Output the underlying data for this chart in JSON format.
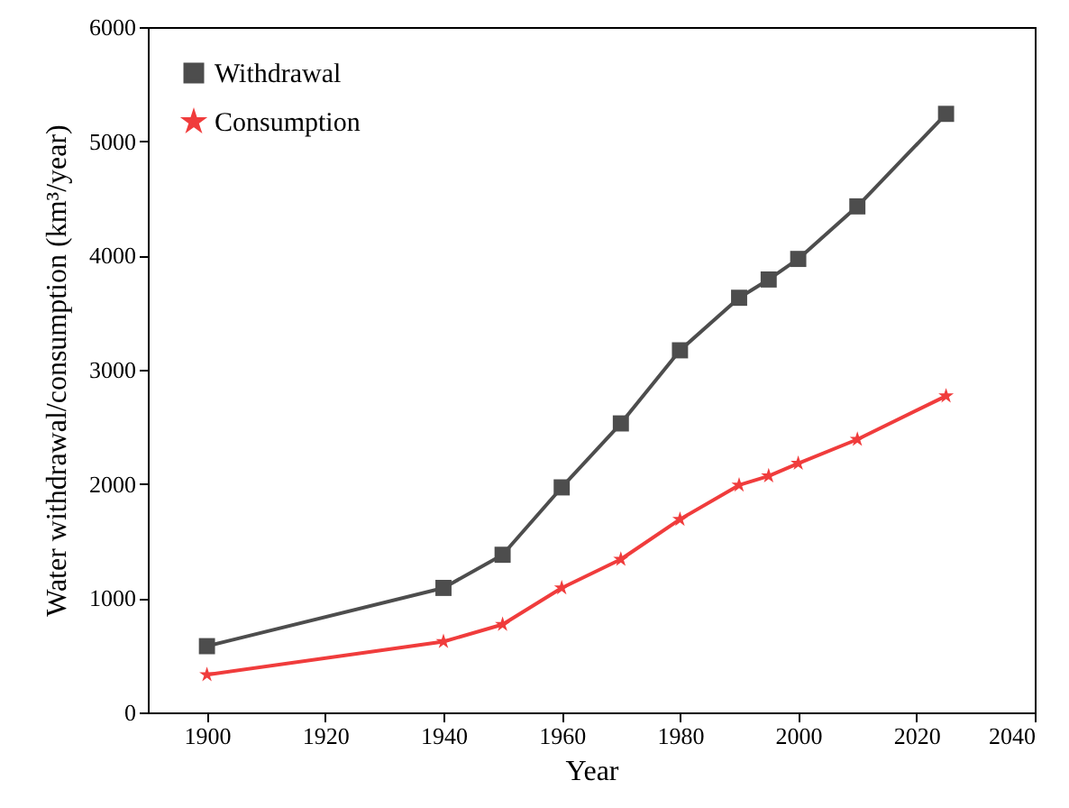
{
  "chart_data": {
    "type": "line",
    "xlabel": "Year",
    "ylabel": "Water withdrawal/consumption (km³/year)",
    "x": [
      1900,
      1940,
      1950,
      1960,
      1970,
      1980,
      1990,
      1995,
      2000,
      2010,
      2025
    ],
    "series": [
      {
        "name": "Withdrawal",
        "color": "#4d4d4d",
        "marker": "square",
        "values": [
          580,
          1090,
          1380,
          1970,
          2530,
          3170,
          3630,
          3790,
          3970,
          4430,
          5240
        ]
      },
      {
        "name": "Consumption",
        "color": "#f03c3c",
        "marker": "star",
        "values": [
          330,
          620,
          770,
          1090,
          1340,
          1690,
          1990,
          2070,
          2180,
          2390,
          2770
        ]
      }
    ],
    "xlim": [
      1890,
      2040
    ],
    "xticks": [
      1900,
      1920,
      1940,
      1960,
      1980,
      2000,
      2020,
      2040
    ],
    "ylim": [
      0,
      6000
    ],
    "yticks": [
      0,
      1000,
      2000,
      3000,
      4000,
      5000,
      6000
    ],
    "grid": false,
    "legend": "top left",
    "line_style": "solid"
  }
}
